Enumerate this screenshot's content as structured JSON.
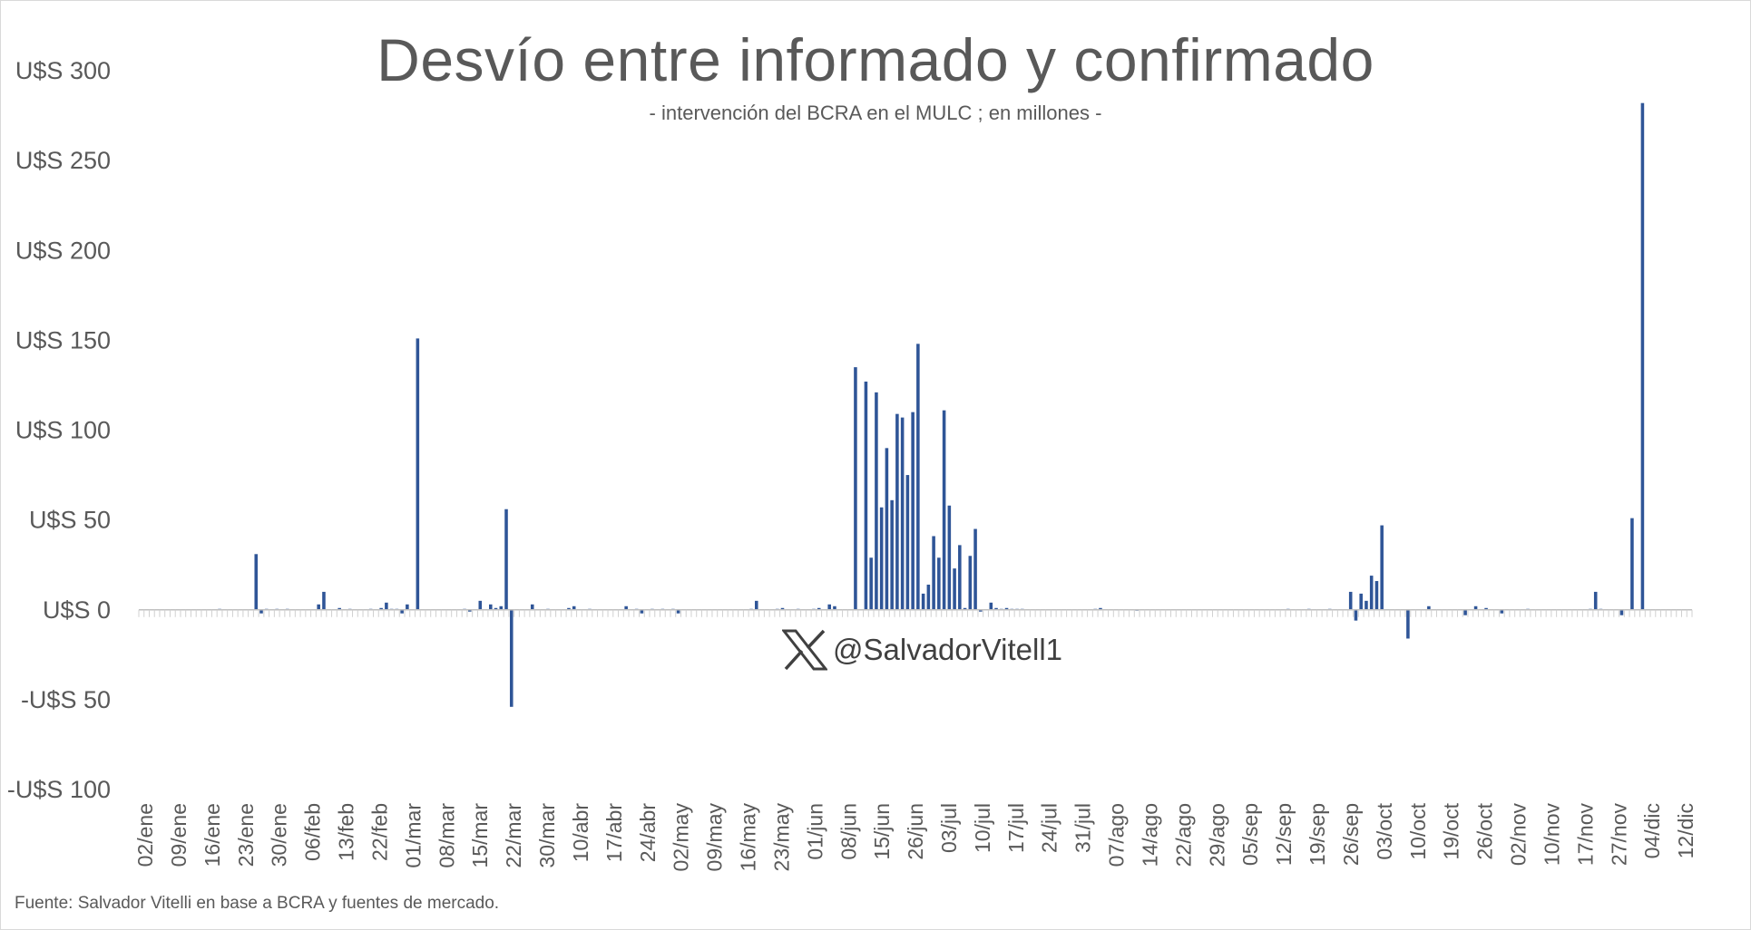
{
  "chart_data": {
    "type": "bar",
    "title": "Desvío entre informado y confirmado",
    "subtitle": "- intervención del BCRA en el MULC ; en millones -",
    "ylim": [
      -100,
      300
    ],
    "yticks": [
      300,
      250,
      200,
      150,
      100,
      50,
      0,
      -50,
      -100
    ],
    "ytick_labels": [
      "U$S 300",
      "U$S 250",
      "U$S 200",
      "U$S 150",
      "U$S 100",
      "U$S 50",
      "U$S 0",
      "-U$S 50",
      "-U$S 100"
    ],
    "x_tick_labels": [
      "02/ene",
      "09/ene",
      "16/ene",
      "23/ene",
      "30/ene",
      "06/feb",
      "13/feb",
      "22/feb",
      "01/mar",
      "08/mar",
      "15/mar",
      "22/mar",
      "30/mar",
      "10/abr",
      "17/abr",
      "24/abr",
      "02/may",
      "09/may",
      "16/may",
      "23/may",
      "01/jun",
      "08/jun",
      "15/jun",
      "26/jun",
      "03/jul",
      "10/jul",
      "17/jul",
      "24/jul",
      "31/jul",
      "07/ago",
      "14/ago",
      "22/ago",
      "29/ago",
      "05/sep",
      "12/sep",
      "19/sep",
      "26/sep",
      "03/oct",
      "10/oct",
      "19/oct",
      "26/oct",
      "02/nov",
      "10/nov",
      "17/nov",
      "27/nov",
      "04/dic",
      "12/dic"
    ],
    "values": [
      0,
      0,
      0,
      0,
      0,
      0,
      0,
      0,
      0,
      0,
      0,
      0,
      0,
      0,
      0,
      0.5,
      0,
      0,
      0,
      0,
      0,
      0,
      31,
      -2,
      0.5,
      0,
      0.5,
      0,
      0.5,
      0,
      0,
      0,
      0,
      0,
      3,
      10,
      0,
      0,
      1,
      0,
      0.5,
      0,
      0,
      0,
      0.5,
      0,
      1,
      4,
      0.5,
      0.5,
      -2,
      3,
      0,
      151,
      0,
      0,
      0,
      0,
      0,
      0,
      0,
      0,
      0.5,
      -1,
      0,
      5,
      0,
      3,
      1,
      2,
      56,
      -54,
      0,
      0,
      0,
      3,
      0,
      0,
      0.5,
      0,
      0,
      0,
      1,
      2,
      0,
      0,
      0.5,
      0,
      0,
      0,
      0,
      0,
      0,
      2,
      0,
      0.5,
      -2,
      0,
      0.5,
      0,
      0.5,
      0,
      0.5,
      -2,
      0,
      0,
      0,
      0,
      0,
      0,
      0,
      0,
      0,
      0,
      0,
      0,
      0,
      0.5,
      5,
      0,
      0,
      0,
      0.5,
      1,
      0,
      0,
      0.5,
      0,
      0,
      0.5,
      1,
      0,
      3,
      2,
      0,
      0,
      0,
      135,
      0,
      127,
      29,
      121,
      57,
      90,
      61,
      109,
      107,
      75,
      110,
      148,
      9,
      14,
      41,
      29,
      111,
      58,
      23,
      36,
      1,
      30,
      45,
      -1,
      0,
      4,
      1,
      0.5,
      1,
      0.5,
      0.5,
      0.5,
      0,
      0,
      0,
      0,
      0,
      0,
      0,
      0,
      0,
      0,
      0,
      0,
      0,
      0.5,
      1,
      0,
      0,
      0,
      0,
      0,
      0,
      -0.5,
      0,
      0,
      0,
      0,
      0,
      0,
      0,
      0,
      0,
      0,
      0,
      0,
      0,
      0,
      0,
      0,
      0,
      0,
      0,
      0,
      0,
      0,
      0,
      0,
      0,
      0,
      0,
      0,
      0.5,
      0,
      0,
      0,
      0.5,
      0,
      0,
      0,
      0.5,
      0,
      0,
      0,
      10,
      -6,
      9,
      5,
      19,
      16,
      47,
      0,
      0,
      0,
      0,
      -16,
      0,
      0,
      0,
      2,
      0,
      0,
      0,
      0,
      0,
      0,
      -3,
      0,
      2,
      0,
      1,
      0,
      0,
      -2,
      0,
      0,
      0,
      0,
      0.5,
      0,
      0,
      0,
      0,
      0,
      0,
      0,
      0,
      0,
      0,
      0,
      0.5,
      10,
      0.5,
      0,
      0,
      0,
      -3,
      0,
      51,
      0,
      282,
      0,
      0,
      0,
      0,
      0,
      0,
      0,
      0,
      0
    ],
    "bar_color": "#2F5597",
    "grid": false,
    "legend": "none"
  },
  "watermark": {
    "icon": "x-logo-icon",
    "text": "@SalvadorVitell1"
  },
  "source": "Fuente: Salvador Vitelli en base a BCRA y fuentes de mercado.",
  "colors": {
    "text": "#595959",
    "axis": "#bfbfbf"
  }
}
